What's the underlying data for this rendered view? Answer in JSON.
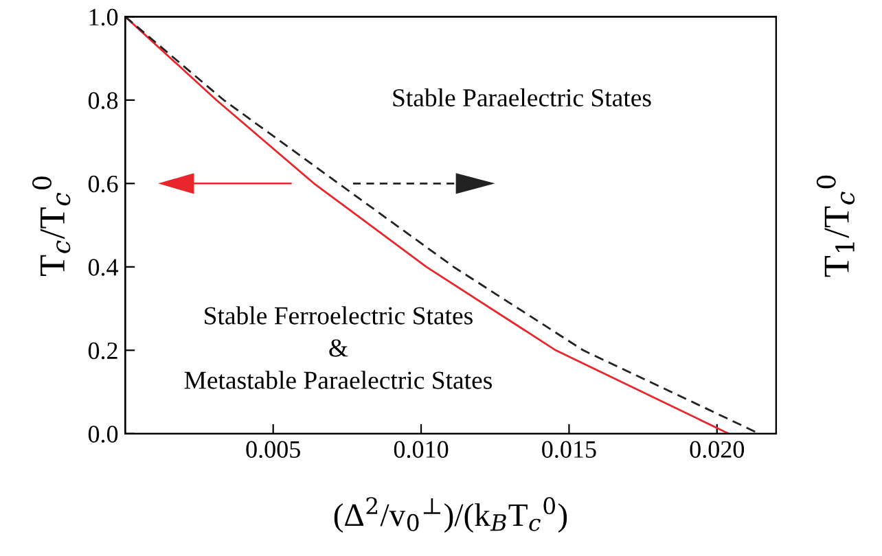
{
  "chart_data": {
    "type": "line",
    "xlabel": "(Δ$^{2}$/v$_{0}$$^{⊥}$)/(k$_{B}$T$_{c}$$^{0}$)",
    "ylabel": "T$_{c}$/T$_{c}$$^{0}$",
    "y2label": "T$_{1}$/T$_{c}$$^{0}$",
    "annotations": [
      "Stable Paraelectric States",
      "Stable Ferroelectric States\n&\nMetastable Paraelectric States"
    ],
    "series": [
      {
        "color": "#e8262b",
        "line_style": "solid",
        "x": [
          0,
          0.00308,
          0.00638,
          0.01018,
          0.01455,
          0.0204
        ],
        "values": [
          1.0,
          0.8,
          0.6,
          0.4,
          0.2,
          0.0
        ]
      },
      {
        "color": "#222222",
        "line_style": "dashed",
        "x": [
          0,
          0.00333,
          0.00721,
          0.0111,
          0.01548,
          0.02143
        ],
        "values": [
          1.0,
          0.8,
          0.6,
          0.4,
          0.2,
          0.0
        ]
      }
    ],
    "xlim": [
      0,
      0.022
    ],
    "ylim": [
      0,
      1.0
    ],
    "xticks": [
      {
        "value": 0.005,
        "label": "0.005"
      },
      {
        "value": 0.01,
        "label": "0.010"
      },
      {
        "value": 0.015,
        "label": "0.015"
      },
      {
        "value": 0.02,
        "label": "0.020"
      }
    ],
    "yticks": [
      {
        "value": 0,
        "label": "0.0"
      },
      {
        "value": 0.2,
        "label": "0.2"
      },
      {
        "value": 0.4,
        "label": "0.4"
      },
      {
        "value": 0.6,
        "label": "0.6"
      },
      {
        "value": 0.8,
        "label": "0.8"
      },
      {
        "value": 1.0,
        "label": "1.0"
      }
    ],
    "grid": false,
    "legend": false,
    "marker": "none"
  }
}
